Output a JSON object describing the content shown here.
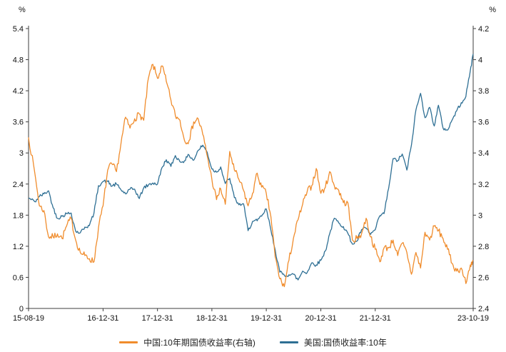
{
  "page": {
    "background": "#ffffff"
  },
  "chart_data": {
    "type": "line",
    "title": "",
    "grid": "off",
    "legend_position": "bottom-center",
    "left_axis": {
      "unit": "%",
      "min": 0,
      "max": 5.4,
      "ticks": [
        "5.4",
        "4.8",
        "4.2",
        "3.6",
        "3",
        "2.4",
        "1.8",
        "1.2",
        "0.6",
        "0"
      ]
    },
    "right_axis": {
      "unit": "%",
      "min": 2.4,
      "max": 4.2,
      "ticks": [
        "4.2",
        "4",
        "3.8",
        "3.6",
        "3.4",
        "3.2",
        "3",
        "2.8",
        "2.6",
        "2.4"
      ]
    },
    "x_axis": {
      "start": "2015-08-19",
      "end": "2023-10-19",
      "tick_labels": [
        {
          "label": "15-08-19",
          "date": "2015-08-19"
        },
        {
          "label": "16-12-31",
          "date": "2016-12-31"
        },
        {
          "label": "17-12-31",
          "date": "2017-12-31"
        },
        {
          "label": "18-12-31",
          "date": "2018-12-31"
        },
        {
          "label": "19-12-31",
          "date": "2019-12-31"
        },
        {
          "label": "20-12-31",
          "date": "2020-12-31"
        },
        {
          "label": "21-12-31",
          "date": "2021-12-31"
        },
        {
          "label": "23-10-19",
          "date": "2023-10-19"
        }
      ]
    },
    "dates": [
      "2015-08-19",
      "2015-09-30",
      "2015-10-31",
      "2015-11-30",
      "2015-12-31",
      "2016-01-31",
      "2016-02-29",
      "2016-03-31",
      "2016-04-30",
      "2016-05-31",
      "2016-06-30",
      "2016-07-31",
      "2016-08-31",
      "2016-09-30",
      "2016-10-31",
      "2016-11-30",
      "2016-12-31",
      "2017-01-31",
      "2017-02-28",
      "2017-03-31",
      "2017-04-30",
      "2017-05-31",
      "2017-06-30",
      "2017-07-31",
      "2017-08-31",
      "2017-09-30",
      "2017-10-31",
      "2017-11-30",
      "2017-12-31",
      "2018-01-31",
      "2018-02-28",
      "2018-03-31",
      "2018-04-30",
      "2018-05-31",
      "2018-06-30",
      "2018-07-31",
      "2018-08-31",
      "2018-09-30",
      "2018-10-31",
      "2018-11-30",
      "2018-12-31",
      "2019-01-31",
      "2019-02-28",
      "2019-03-31",
      "2019-04-30",
      "2019-05-31",
      "2019-06-30",
      "2019-07-31",
      "2019-08-31",
      "2019-09-30",
      "2019-10-31",
      "2019-11-30",
      "2019-12-31",
      "2020-01-31",
      "2020-02-29",
      "2020-03-31",
      "2020-04-30",
      "2020-05-31",
      "2020-06-30",
      "2020-07-31",
      "2020-08-31",
      "2020-09-30",
      "2020-10-31",
      "2020-11-30",
      "2020-12-31",
      "2021-01-31",
      "2021-02-28",
      "2021-03-31",
      "2021-04-30",
      "2021-05-31",
      "2021-06-30",
      "2021-07-31",
      "2021-08-31",
      "2021-09-30",
      "2021-10-31",
      "2021-11-30",
      "2021-12-31",
      "2022-01-31",
      "2022-02-28",
      "2022-03-31",
      "2022-04-30",
      "2022-05-31",
      "2022-06-30",
      "2022-07-31",
      "2022-08-31",
      "2022-09-30",
      "2022-10-31",
      "2022-11-30",
      "2022-12-31",
      "2023-01-31",
      "2023-02-28",
      "2023-03-31",
      "2023-04-30",
      "2023-05-31",
      "2023-06-30",
      "2023-07-31",
      "2023-08-31",
      "2023-09-30",
      "2023-10-19"
    ],
    "series": [
      {
        "name": "中国:10年期国债收益率(右轴)",
        "axis": "right",
        "color": "#F08C2C",
        "values": [
          3.5,
          3.27,
          3.06,
          3.03,
          2.86,
          2.86,
          2.88,
          2.85,
          2.93,
          2.98,
          2.84,
          2.76,
          2.74,
          2.72,
          2.7,
          2.92,
          3.06,
          3.29,
          3.33,
          3.28,
          3.46,
          3.63,
          3.56,
          3.62,
          3.65,
          3.61,
          3.88,
          3.97,
          3.88,
          3.96,
          3.86,
          3.74,
          3.64,
          3.61,
          3.48,
          3.48,
          3.6,
          3.62,
          3.52,
          3.38,
          3.23,
          3.1,
          3.17,
          3.07,
          3.41,
          3.29,
          3.23,
          3.16,
          3.06,
          3.14,
          3.27,
          3.18,
          3.14,
          2.99,
          2.73,
          2.59,
          2.54,
          2.71,
          2.85,
          2.97,
          3.07,
          3.15,
          3.19,
          3.3,
          3.14,
          3.18,
          3.28,
          3.19,
          3.16,
          3.08,
          3.08,
          2.84,
          2.85,
          2.88,
          2.98,
          2.86,
          2.78,
          2.7,
          2.79,
          2.79,
          2.84,
          2.74,
          2.82,
          2.76,
          2.62,
          2.76,
          2.66,
          2.89,
          2.84,
          2.93,
          2.9,
          2.85,
          2.78,
          2.69,
          2.64,
          2.66,
          2.56,
          2.68,
          2.71
        ]
      },
      {
        "name": "美国:国债收益率:10年",
        "axis": "left",
        "color": "#2E6F94",
        "values": [
          2.13,
          2.06,
          2.16,
          2.21,
          2.27,
          1.94,
          1.74,
          1.78,
          1.83,
          1.84,
          1.49,
          1.46,
          1.57,
          1.6,
          1.84,
          2.37,
          2.45,
          2.45,
          2.36,
          2.4,
          2.29,
          2.21,
          2.3,
          2.3,
          2.12,
          2.33,
          2.38,
          2.42,
          2.4,
          2.72,
          2.87,
          2.74,
          2.95,
          2.83,
          2.85,
          2.96,
          2.86,
          3.05,
          3.15,
          3.01,
          2.69,
          2.63,
          2.73,
          2.41,
          2.51,
          2.14,
          2.0,
          2.02,
          1.5,
          1.68,
          1.69,
          1.78,
          1.92,
          1.51,
          1.13,
          0.7,
          0.64,
          0.65,
          0.66,
          0.55,
          0.72,
          0.69,
          0.88,
          0.84,
          0.93,
          1.11,
          1.44,
          1.74,
          1.65,
          1.58,
          1.45,
          1.24,
          1.3,
          1.52,
          1.55,
          1.43,
          1.52,
          1.79,
          1.83,
          2.32,
          2.89,
          2.85,
          2.98,
          2.67,
          3.15,
          3.83,
          4.15,
          3.68,
          3.88,
          3.52,
          3.92,
          3.48,
          3.44,
          3.64,
          3.81,
          3.97,
          4.09,
          4.59,
          4.91
        ]
      }
    ]
  }
}
